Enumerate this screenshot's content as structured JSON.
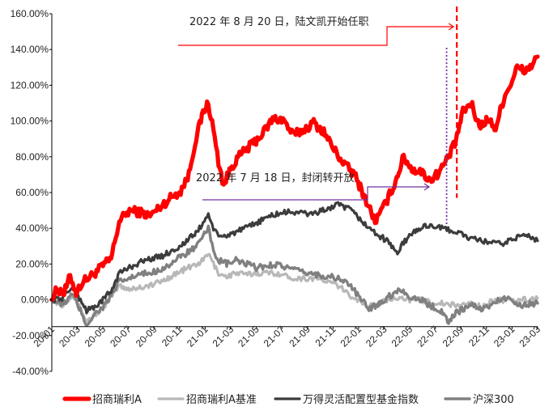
{
  "chart_data": {
    "type": "line",
    "title": "",
    "xlabel": "",
    "ylabel": "",
    "ylim": [
      -40,
      160
    ],
    "y_ticks": [
      "160.00%",
      "140.00%",
      "120.00%",
      "100.00%",
      "80.00%",
      "60.00%",
      "40.00%",
      "20.00%",
      "0.00%",
      "-20.00%",
      "-40.00%"
    ],
    "x_ticks": [
      "20-01",
      "20-03",
      "20-05",
      "20-07",
      "20-09",
      "20-11",
      "21-01",
      "21-03",
      "21-05",
      "21-07",
      "21-09",
      "21-11",
      "22-01",
      "22-03",
      "22-05",
      "22-07",
      "22-09",
      "22-11",
      "23-01",
      "23-03"
    ],
    "x_axis_at": -15,
    "grid": false,
    "legend_position": "bottom",
    "series": [
      {
        "name": "招商瑞利A",
        "color": "#ff0000",
        "points": [
          [
            0,
            0
          ],
          [
            0.5,
            6
          ],
          [
            1.2,
            4
          ],
          [
            1.8,
            13
          ],
          [
            2.4,
            4
          ],
          [
            3,
            10
          ],
          [
            4,
            14
          ],
          [
            5,
            19
          ],
          [
            5.8,
            23
          ],
          [
            6.6,
            44
          ],
          [
            7.6,
            50
          ],
          [
            8.6,
            49
          ],
          [
            9.6,
            47
          ],
          [
            10.6,
            52
          ],
          [
            11.6,
            57
          ],
          [
            12.6,
            61
          ],
          [
            13.4,
            70
          ],
          [
            14,
            88
          ],
          [
            14.8,
            105
          ],
          [
            15.3,
            110
          ],
          [
            15.8,
            95
          ],
          [
            16.3,
            77
          ],
          [
            16.8,
            64
          ],
          [
            17.6,
            75
          ],
          [
            18.6,
            82
          ],
          [
            19.6,
            87
          ],
          [
            20.6,
            93
          ],
          [
            21.6,
            101
          ],
          [
            22.6,
            101
          ],
          [
            23.6,
            92
          ],
          [
            24.6,
            95
          ],
          [
            25.6,
            99
          ],
          [
            26.6,
            94
          ],
          [
            27.6,
            84
          ],
          [
            28.6,
            76
          ],
          [
            29.6,
            70
          ],
          [
            30.4,
            60
          ],
          [
            31,
            52
          ],
          [
            31.6,
            44
          ],
          [
            32.2,
            49
          ],
          [
            32.8,
            56
          ],
          [
            33.6,
            66
          ],
          [
            34.4,
            80
          ],
          [
            35.2,
            73
          ],
          [
            36,
            72
          ],
          [
            37,
            67
          ],
          [
            37.8,
            71
          ],
          [
            38.6,
            78
          ],
          [
            39.4,
            87
          ],
          [
            40.2,
            105
          ],
          [
            41,
            110
          ],
          [
            41.8,
            97
          ],
          [
            42.6,
            101
          ],
          [
            43.4,
            96
          ],
          [
            44.2,
            113
          ],
          [
            44.8,
            120
          ],
          [
            45.5,
            130
          ],
          [
            46.2,
            128
          ],
          [
            46.9,
            131
          ],
          [
            47.5,
            136
          ]
        ]
      },
      {
        "name": "招商瑞利A基准",
        "color": "#b8b8b8",
        "points": [
          [
            0,
            0
          ],
          [
            1,
            -3
          ],
          [
            2,
            3
          ],
          [
            2.8,
            -5
          ],
          [
            3.4,
            -12
          ],
          [
            4.2,
            -8
          ],
          [
            5,
            -5
          ],
          [
            5.8,
            2
          ],
          [
            6.6,
            8
          ],
          [
            7.6,
            6
          ],
          [
            8.6,
            7
          ],
          [
            9.6,
            8
          ],
          [
            10.6,
            10
          ],
          [
            11.6,
            13
          ],
          [
            12.6,
            16
          ],
          [
            13.4,
            18
          ],
          [
            14.2,
            20
          ],
          [
            14.8,
            22
          ],
          [
            15.3,
            26
          ],
          [
            15.8,
            20
          ],
          [
            16.3,
            15
          ],
          [
            17.1,
            13
          ],
          [
            18,
            15
          ],
          [
            19,
            14
          ],
          [
            20,
            15
          ],
          [
            21,
            15
          ],
          [
            22,
            15
          ],
          [
            23,
            13
          ],
          [
            24,
            12
          ],
          [
            25,
            12
          ],
          [
            26,
            12
          ],
          [
            27,
            10
          ],
          [
            28,
            8
          ],
          [
            29,
            3
          ],
          [
            30,
            0
          ],
          [
            31,
            -4
          ],
          [
            32,
            -2
          ],
          [
            33,
            0
          ],
          [
            34,
            2
          ],
          [
            35,
            0
          ],
          [
            36,
            0
          ],
          [
            37,
            -1
          ],
          [
            38,
            -2
          ],
          [
            39,
            -3
          ],
          [
            40,
            -3
          ],
          [
            41,
            -2
          ],
          [
            42,
            -4
          ],
          [
            43,
            -1
          ],
          [
            44,
            0
          ],
          [
            45,
            -1
          ],
          [
            46,
            0
          ],
          [
            47,
            0
          ],
          [
            47.5,
            1
          ]
        ]
      },
      {
        "name": "万得灵活配置型基金指数",
        "color": "#3c3c3c",
        "points": [
          [
            0,
            0
          ],
          [
            1,
            1
          ],
          [
            2,
            7
          ],
          [
            2.8,
            0
          ],
          [
            3.4,
            -6
          ],
          [
            4.2,
            -4
          ],
          [
            5,
            0
          ],
          [
            5.8,
            5
          ],
          [
            6.6,
            15
          ],
          [
            7.6,
            18
          ],
          [
            8.6,
            21
          ],
          [
            9.6,
            23
          ],
          [
            10.6,
            24
          ],
          [
            11.6,
            27
          ],
          [
            12.6,
            30
          ],
          [
            13.4,
            34
          ],
          [
            14.2,
            38
          ],
          [
            14.8,
            43
          ],
          [
            15.3,
            48
          ],
          [
            15.8,
            40
          ],
          [
            16.3,
            35
          ],
          [
            17.1,
            36
          ],
          [
            18,
            38
          ],
          [
            19,
            40
          ],
          [
            20,
            43
          ],
          [
            21,
            46
          ],
          [
            22,
            48
          ],
          [
            23,
            49
          ],
          [
            24,
            49
          ],
          [
            25,
            48
          ],
          [
            26,
            49
          ],
          [
            27,
            51
          ],
          [
            28,
            53
          ],
          [
            29,
            51
          ],
          [
            30,
            46
          ],
          [
            31,
            40
          ],
          [
            32,
            36
          ],
          [
            33,
            32
          ],
          [
            33.8,
            26
          ],
          [
            34.4,
            32
          ],
          [
            35.2,
            37
          ],
          [
            36,
            40
          ],
          [
            37,
            42
          ],
          [
            38,
            40
          ],
          [
            39,
            39
          ],
          [
            40,
            37
          ],
          [
            41,
            34
          ],
          [
            42,
            33
          ],
          [
            43,
            32
          ],
          [
            44,
            31
          ],
          [
            45,
            34
          ],
          [
            46,
            36
          ],
          [
            47,
            35
          ],
          [
            47.5,
            33
          ]
        ]
      },
      {
        "name": "沪深300",
        "color": "#808080",
        "points": [
          [
            0,
            0
          ],
          [
            1,
            -3
          ],
          [
            2,
            3
          ],
          [
            2.8,
            -6
          ],
          [
            3.4,
            -14
          ],
          [
            4.2,
            -8
          ],
          [
            5,
            -4
          ],
          [
            5.8,
            2
          ],
          [
            6.6,
            10
          ],
          [
            7.6,
            12
          ],
          [
            8.6,
            14
          ],
          [
            9.6,
            15
          ],
          [
            10.6,
            17
          ],
          [
            11.6,
            20
          ],
          [
            12.6,
            24
          ],
          [
            13.4,
            27
          ],
          [
            14.2,
            30
          ],
          [
            14.8,
            35
          ],
          [
            15.3,
            40
          ],
          [
            15.8,
            28
          ],
          [
            16.3,
            22
          ],
          [
            17.1,
            20
          ],
          [
            18,
            22
          ],
          [
            19,
            20
          ],
          [
            20,
            18
          ],
          [
            21,
            19
          ],
          [
            22,
            20
          ],
          [
            23,
            18
          ],
          [
            24,
            16
          ],
          [
            25,
            15
          ],
          [
            26,
            14
          ],
          [
            27,
            13
          ],
          [
            28,
            12
          ],
          [
            29,
            9
          ],
          [
            30,
            2
          ],
          [
            31,
            -5
          ],
          [
            32,
            -2
          ],
          [
            33,
            2
          ],
          [
            34,
            6
          ],
          [
            35,
            2
          ],
          [
            36,
            0
          ],
          [
            37,
            -3
          ],
          [
            38,
            -6
          ],
          [
            38.8,
            -12
          ],
          [
            39.4,
            -8
          ],
          [
            40.2,
            -5
          ],
          [
            41,
            -3
          ],
          [
            42,
            -5
          ],
          [
            43,
            -3
          ],
          [
            44,
            1
          ],
          [
            45,
            0
          ],
          [
            46,
            -3
          ],
          [
            47,
            -2
          ],
          [
            47.5,
            -2
          ]
        ]
      }
    ],
    "annotations": [
      {
        "text": "2022 年 8 月 20 日，陆文凯开始任职",
        "x": 39.6,
        "style": "dashed",
        "color": "#ff0000"
      },
      {
        "text": "2022 年 7 月 18 日，封闭转开放",
        "x": 38.6,
        "style": "dotted",
        "color": "#7030a0"
      }
    ]
  }
}
